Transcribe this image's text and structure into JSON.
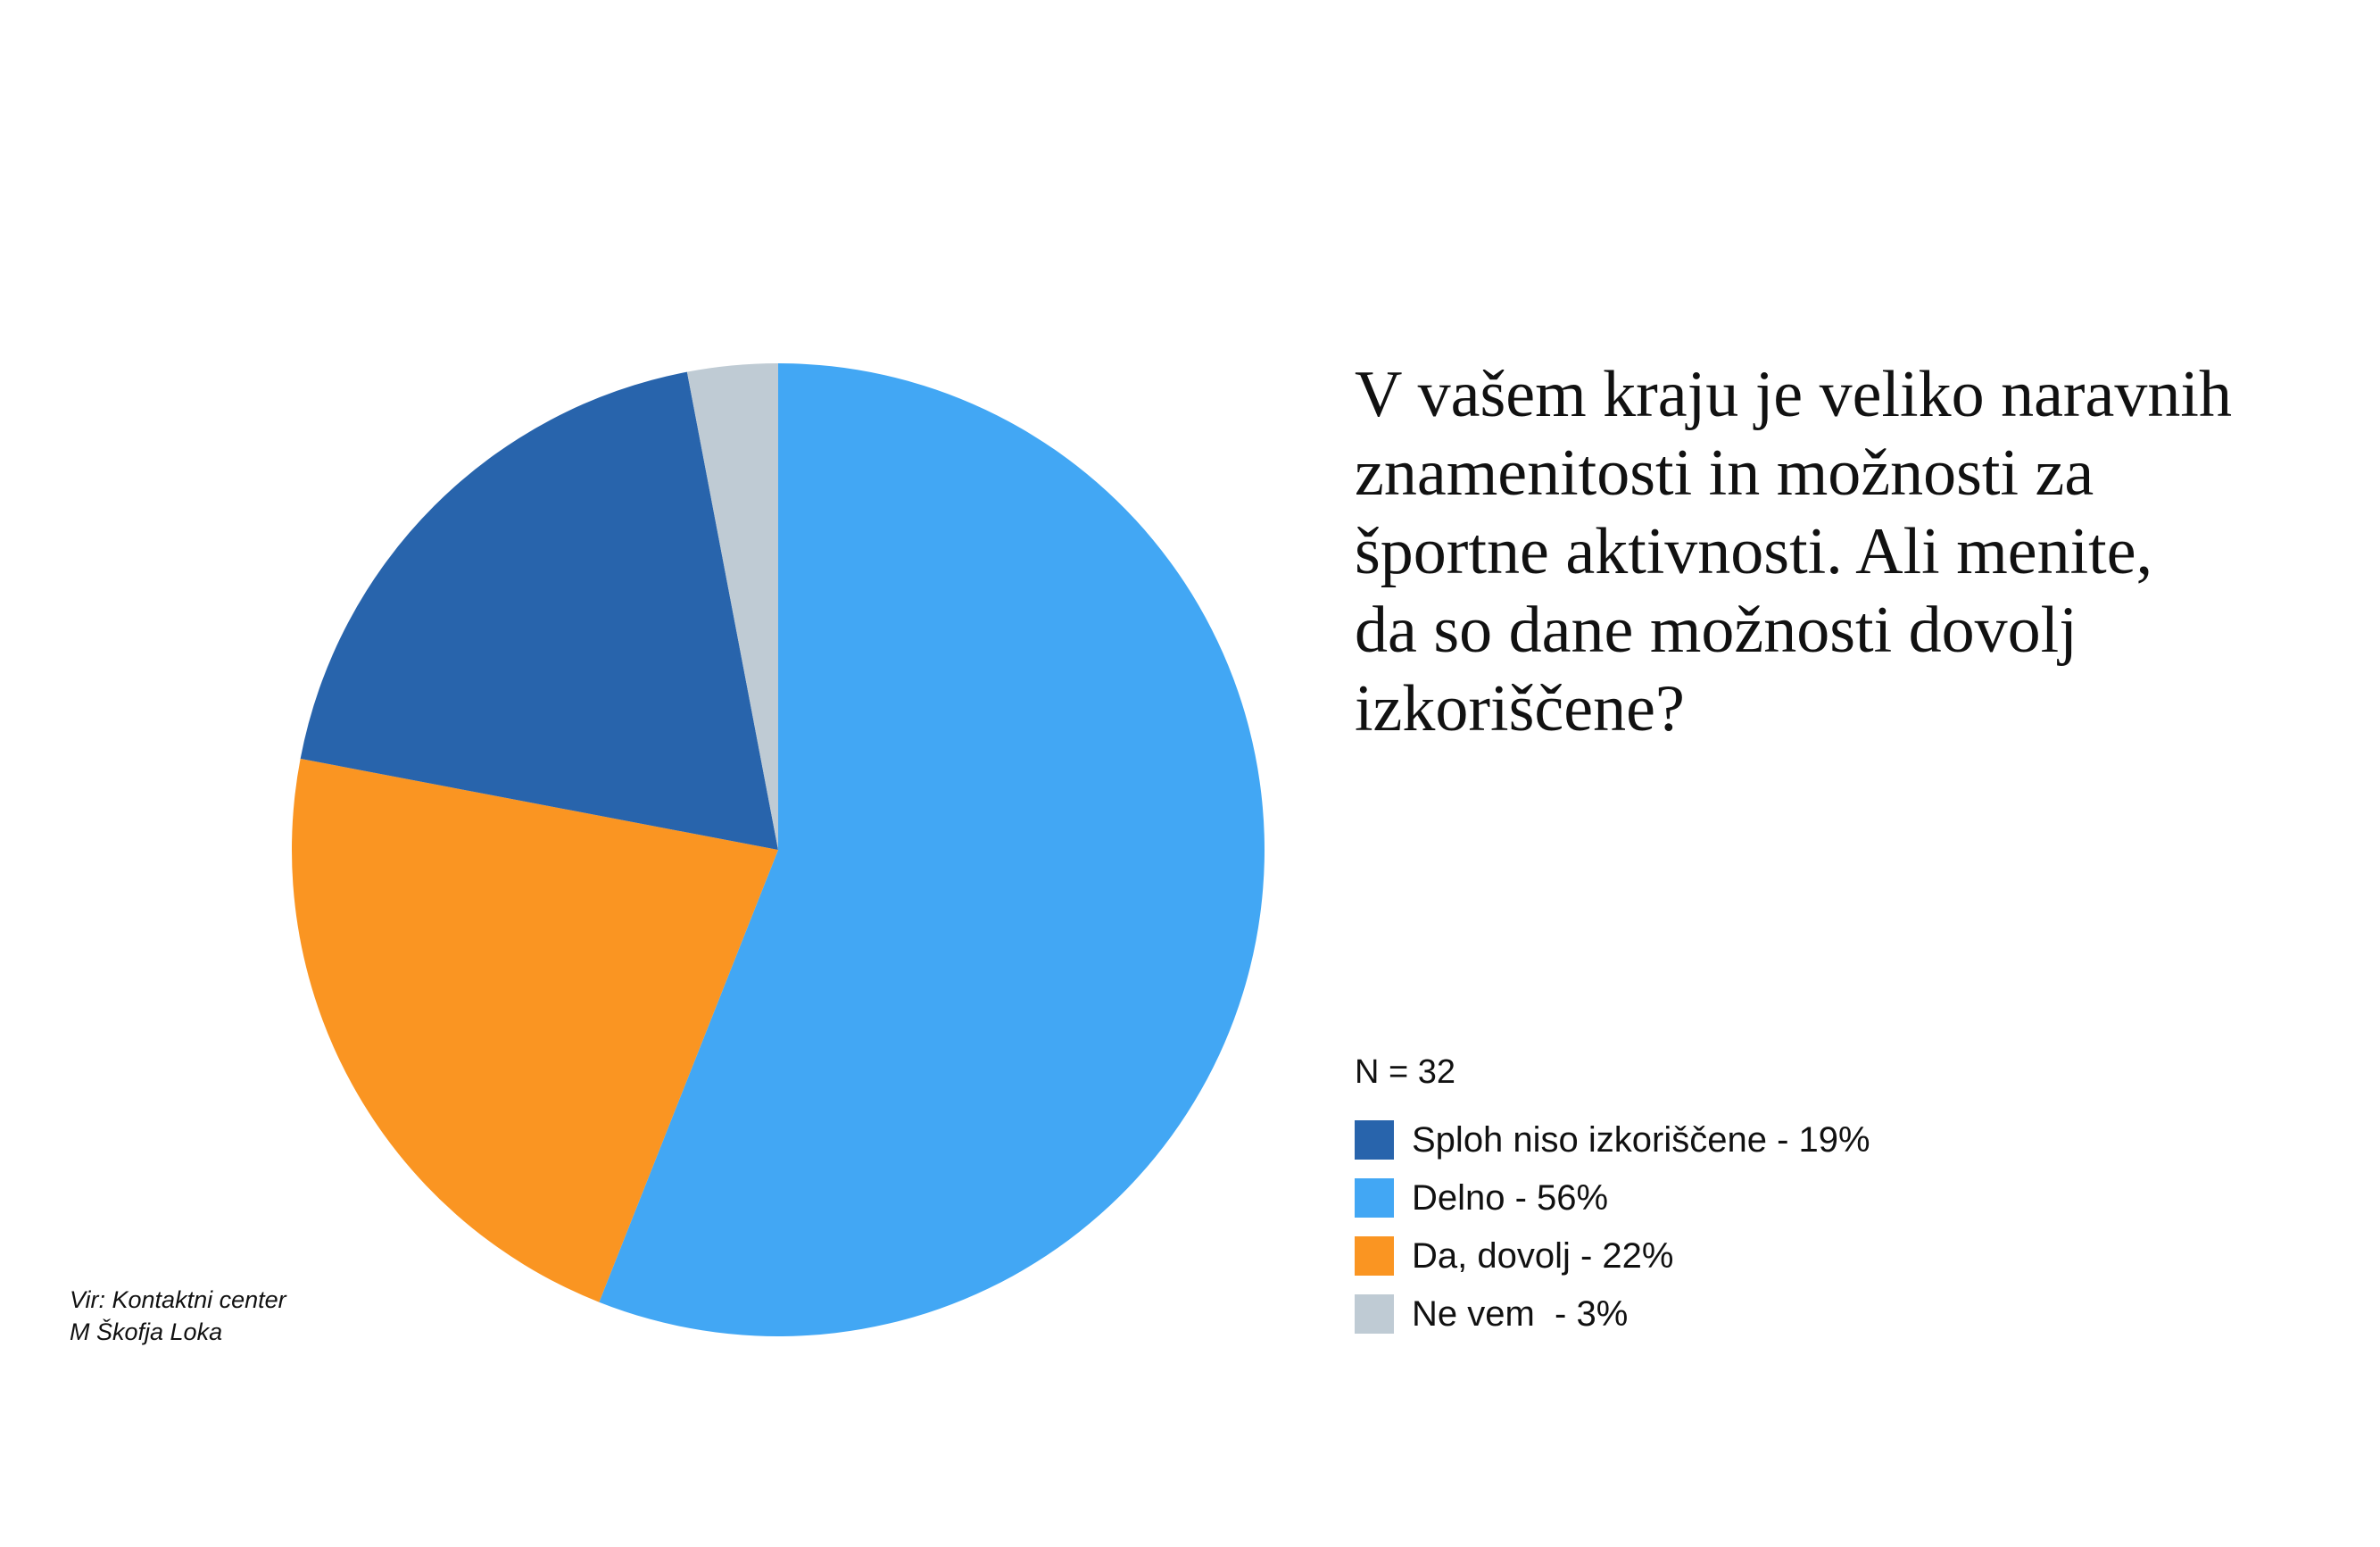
{
  "chart_data": {
    "type": "pie",
    "title": "V vašem kraju je veliko naravnih\nznamenitosti in možnosti za\nšportne aktivnosti. Ali menite,\nda so dane možnosti dovolj\nizkoriščene?",
    "n_label": "N = 32",
    "slices": [
      {
        "label": "Sploh niso izkoriščene - 19%",
        "value": 19,
        "color": "#2864ac"
      },
      {
        "label": "Delno - 56%",
        "value": 56,
        "color": "#42a7f4"
      },
      {
        "label": "Da, dovolj - 22%",
        "value": 22,
        "color": "#fa9522"
      },
      {
        "label": "Ne vem  - 3%",
        "value": 3,
        "color": "#bfcbd4"
      }
    ],
    "legend_position": "right",
    "source": {
      "line1": "Vir: Kontaktni center",
      "line2": "M Škofja Loka"
    }
  }
}
